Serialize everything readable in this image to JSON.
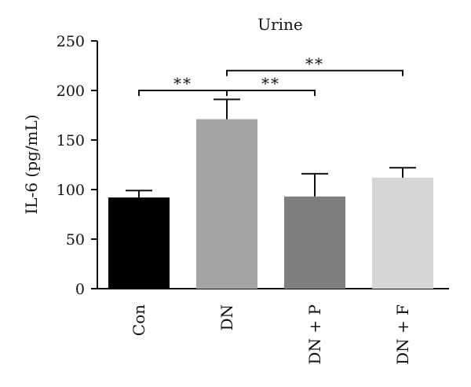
{
  "chart_data": {
    "type": "bar",
    "title": "Urine",
    "ylabel": "IL-6 (pg/mL)",
    "xlabel": "",
    "ylim": [
      0,
      250
    ],
    "yticks": [
      0,
      50,
      100,
      150,
      200,
      250
    ],
    "categories": [
      "Con",
      "DN",
      "DN + P",
      "DN + F"
    ],
    "values": [
      92,
      171,
      93,
      112
    ],
    "errors": [
      7,
      20,
      23,
      10
    ],
    "colors": [
      "#000000",
      "#a4a4a6",
      "#7f7f7f",
      "#d6d6d6"
    ],
    "significance": [
      {
        "from": 0,
        "to": 1,
        "label": "**"
      },
      {
        "from": 1,
        "to": 2,
        "label": "**"
      },
      {
        "from": 1,
        "to": 3,
        "label": "**"
      }
    ]
  }
}
